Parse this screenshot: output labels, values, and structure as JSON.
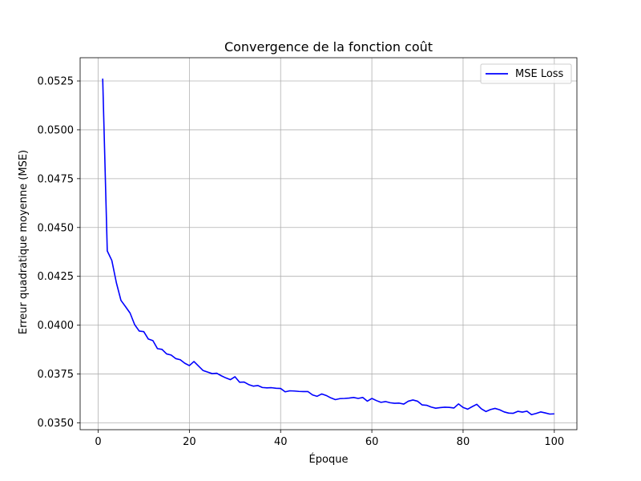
{
  "chart_data": {
    "type": "line",
    "title": "Convergence de la fonction coût",
    "xlabel": "Époque",
    "ylabel": "Erreur quadratique moyenne (MSE)",
    "xlim": [
      -3.95,
      104.95
    ],
    "ylim": [
      0.03465,
      0.05369
    ],
    "xticks": [
      0,
      20,
      40,
      60,
      80,
      100
    ],
    "yticks": [
      0.035,
      0.0375,
      0.04,
      0.0425,
      0.045,
      0.0475,
      0.05,
      0.0525
    ],
    "ytick_labels": [
      "0.0350",
      "0.0375",
      "0.0400",
      "0.0425",
      "0.0450",
      "0.0475",
      "0.0500",
      "0.0525"
    ],
    "grid": true,
    "legend_position": "top-right",
    "series": [
      {
        "name": "MSE Loss",
        "color": "#0000ff",
        "x": [
          1,
          2,
          3,
          4,
          5,
          6,
          7,
          8,
          9,
          10,
          11,
          12,
          13,
          14,
          15,
          16,
          17,
          18,
          19,
          20,
          21,
          22,
          23,
          24,
          25,
          26,
          27,
          28,
          29,
          30,
          31,
          32,
          33,
          34,
          35,
          36,
          37,
          38,
          39,
          40,
          41,
          42,
          43,
          44,
          45,
          46,
          47,
          48,
          49,
          50,
          51,
          52,
          53,
          54,
          55,
          56,
          57,
          58,
          59,
          60,
          61,
          62,
          63,
          64,
          65,
          66,
          67,
          68,
          69,
          70,
          71,
          72,
          73,
          74,
          75,
          76,
          77,
          78,
          79,
          80,
          81,
          82,
          83,
          84,
          85,
          86,
          87,
          88,
          89,
          90,
          91,
          92,
          93,
          94,
          95,
          96,
          97,
          98,
          99,
          100
        ],
        "y": [
          0.05262,
          0.0438,
          0.04331,
          0.04217,
          0.04127,
          0.04095,
          0.04062,
          0.04003,
          0.0397,
          0.03967,
          0.03929,
          0.03921,
          0.0388,
          0.03876,
          0.03853,
          0.03847,
          0.03829,
          0.03823,
          0.03805,
          0.03793,
          0.03814,
          0.03791,
          0.03768,
          0.0376,
          0.03752,
          0.03754,
          0.03741,
          0.0373,
          0.03721,
          0.03736,
          0.03708,
          0.03709,
          0.03696,
          0.03688,
          0.03691,
          0.03681,
          0.03679,
          0.0368,
          0.03677,
          0.03676,
          0.03659,
          0.03664,
          0.03663,
          0.03661,
          0.0366,
          0.0366,
          0.03643,
          0.03636,
          0.03648,
          0.0364,
          0.03628,
          0.03619,
          0.03624,
          0.03625,
          0.03627,
          0.0363,
          0.03625,
          0.0363,
          0.03611,
          0.03625,
          0.03614,
          0.03605,
          0.03609,
          0.03603,
          0.036,
          0.03601,
          0.03596,
          0.03611,
          0.03617,
          0.03611,
          0.03592,
          0.0359,
          0.03581,
          0.03575,
          0.03578,
          0.0358,
          0.03579,
          0.03576,
          0.03597,
          0.03579,
          0.0357,
          0.03583,
          0.03595,
          0.03572,
          0.03558,
          0.03568,
          0.03574,
          0.03567,
          0.03556,
          0.0355,
          0.03549,
          0.03559,
          0.03555,
          0.0356,
          0.03542,
          0.03548,
          0.03556,
          0.03551,
          0.03545,
          0.03546
        ]
      }
    ]
  }
}
